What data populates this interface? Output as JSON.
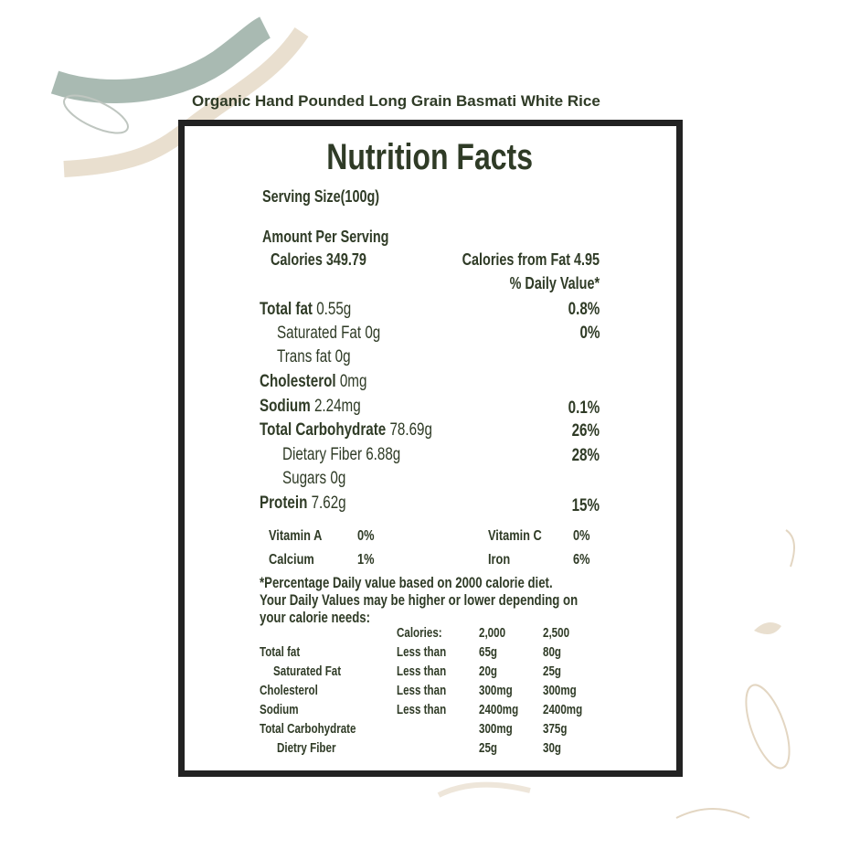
{
  "product_title": "Organic Hand Pounded Long Grain Basmati White Rice",
  "label": {
    "heading": "Nutrition Facts",
    "serving_size": "Serving Size(100g)",
    "amount_per_serving": "Amount Per Serving",
    "calories": "Calories 349.79",
    "calories_from_fat": "Calories from Fat 4.95",
    "daily_value_header": "% Daily Value*",
    "nutrients": [
      {
        "name": "Total fat",
        "amount": "0.55g",
        "dv": "0.8%"
      },
      {
        "name": "Saturated Fat",
        "amount": "0g",
        "dv": "0%"
      },
      {
        "name": "Trans fat",
        "amount": "0g",
        "dv": ""
      },
      {
        "name": "Cholesterol",
        "amount": "0mg",
        "dv": ""
      },
      {
        "name": "Sodium",
        "amount": "2.24mg",
        "dv": "0.1%"
      },
      {
        "name": "Total Carbohydrate",
        "amount": "78.69g",
        "dv": "26%"
      },
      {
        "name": "Dietary Fiber",
        "amount": "6.88g",
        "dv": "28%"
      },
      {
        "name": "Sugars",
        "amount": "0g",
        "dv": ""
      },
      {
        "name": "Protein",
        "amount": "7.62g",
        "dv": "15%"
      }
    ],
    "vitamins": [
      {
        "name": "Vitamin A",
        "value": "0%"
      },
      {
        "name": "Vitamin C",
        "value": "0%"
      },
      {
        "name": "Calcium",
        "value": "1%"
      },
      {
        "name": "Iron",
        "value": "6%"
      }
    ],
    "footnote": [
      "*Percentage Daily value based on 2000 calorie diet.",
      "Your Daily Values may be higher or lower depending on",
      "your calorie needs:"
    ],
    "reference_table": {
      "header": [
        "",
        "Calories:",
        "2,000",
        "2,500"
      ],
      "rows": [
        [
          "Total fat",
          "Less than",
          "65g",
          "80g"
        ],
        [
          "Saturated Fat",
          "Less than",
          "20g",
          "25g"
        ],
        [
          "Cholesterol",
          "Less than",
          "300mg",
          "300mg"
        ],
        [
          "Sodium",
          "Less than",
          "2400mg",
          "2400mg"
        ],
        [
          "Total Carbohydrate",
          "",
          "300mg",
          "375g"
        ],
        [
          "Dietry Fiber",
          "",
          "25g",
          "30g"
        ]
      ]
    }
  },
  "colors": {
    "text": "#2f3b26",
    "border": "#222222",
    "swirl_green": "#a9bab2",
    "swirl_beige": "#e9dfcf"
  }
}
